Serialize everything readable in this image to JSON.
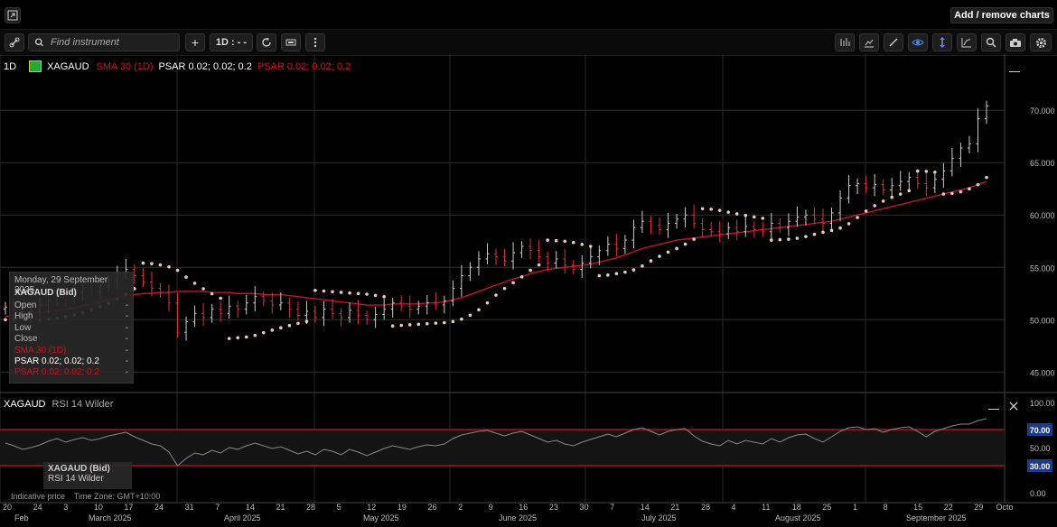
{
  "header": {
    "add_remove_label": "Add / remove charts"
  },
  "toolbar": {
    "search_placeholder": "Find instrument",
    "interval_label": "1D : - -",
    "icons_left": [
      "link-icon",
      "search-icon",
      "plus-icon",
      "interval-selector",
      "refresh-icon",
      "chart-type-icon",
      "more-vertical-icon"
    ],
    "icons_right": [
      "indicators-icon",
      "templates-icon",
      "draw-line-icon",
      "eye-icon",
      "crosshair-icon",
      "line-chart-icon",
      "zoom-icon",
      "camera-icon",
      "settings-icon"
    ]
  },
  "legend": {
    "interval": "1D",
    "symbol": "XAGAUD",
    "sma": "SMA 30 (1D)",
    "psar_white": "PSAR 0.02; 0.02; 0.2",
    "psar_red": "PSAR 0.02; 0.02; 0.2"
  },
  "tooltip": {
    "date": "Monday, 29 September 2025",
    "symbol": "XAGAUD (Bid)",
    "rows": [
      {
        "label": "Open",
        "value": "-"
      },
      {
        "label": "High",
        "value": "-"
      },
      {
        "label": "Low",
        "value": "-"
      },
      {
        "label": "Close",
        "value": "-"
      },
      {
        "label": "SMA 30 (1D)",
        "value": "-"
      },
      {
        "label": "PSAR 0.02; 0.02; 0.2",
        "value": "-"
      },
      {
        "label": "PSAR 0.02; 0.02; 0.2",
        "value": "-"
      }
    ]
  },
  "rsi": {
    "symbol": "XAGAUD",
    "name": "RSI 14 Wilder",
    "tip_symbol": "XAGAUD (Bid)",
    "tip_name": "RSI 14 Wilder",
    "upper_badge": "70.00",
    "lower_badge": "30.00"
  },
  "footnote": "Indicative price    Time Zone: GMT+10:00",
  "colors": {
    "sma": "#c8102e",
    "psar": "#e8c8c8",
    "up": "#cccccc",
    "down": "#e03040",
    "rsi_band": "#d01020"
  },
  "chart_data": {
    "type": "candlestick",
    "symbol": "XAGAUD",
    "interval": "1D",
    "y_ticks": [
      "70.000",
      "65.000",
      "60.000",
      "55.000",
      "50.000",
      "45.000"
    ],
    "ylim": [
      43.3,
      74.5
    ],
    "x_ticks": [
      "20",
      "24",
      "3",
      "10",
      "17",
      "24",
      "31",
      "7",
      "14",
      "21",
      "28",
      "5",
      "12",
      "19",
      "26",
      "2",
      "9",
      "16",
      "23",
      "30",
      "7",
      "14",
      "21",
      "28",
      "4",
      "11",
      "18",
      "25",
      "1",
      "8",
      "15",
      "22",
      "29",
      "Octo"
    ],
    "months": [
      "Feb",
      "March 2025",
      "April 2025",
      "May 2025",
      "June 2025",
      "July 2025",
      "August 2025",
      "September 2025"
    ],
    "close": [
      51.2,
      50.9,
      50.6,
      50.8,
      51.4,
      51.8,
      52.3,
      52.0,
      52.6,
      53.0,
      52.7,
      53.2,
      53.8,
      54.4,
      54.8,
      54.2,
      53.6,
      53.0,
      52.6,
      51.6,
      48.8,
      49.8,
      50.6,
      50.2,
      51.0,
      50.6,
      51.3,
      51.0,
      51.6,
      52.2,
      51.8,
      51.4,
      51.6,
      51.0,
      50.4,
      50.8,
      50.2,
      51.0,
      50.6,
      50.2,
      50.9,
      50.4,
      50.0,
      50.5,
      51.0,
      51.6,
      51.3,
      51.0,
      51.3,
      51.6,
      51.4,
      51.8,
      53.0,
      54.2,
      55.0,
      55.8,
      56.3,
      56.0,
      55.6,
      56.4,
      57.0,
      56.6,
      56.0,
      55.4,
      55.8,
      55.2,
      54.8,
      55.4,
      56.0,
      56.6,
      57.2,
      56.8,
      57.6,
      58.8,
      59.4,
      59.0,
      58.6,
      59.2,
      59.6,
      60.0,
      59.2,
      58.6,
      58.4,
      58.2,
      58.8,
      58.4,
      58.9,
      58.6,
      58.4,
      59.2,
      58.8,
      59.4,
      59.8,
      60.0,
      59.6,
      59.2,
      60.2,
      61.6,
      62.8,
      63.0,
      62.6,
      62.9,
      62.4,
      62.8,
      63.2,
      63.6,
      63.0,
      62.6,
      63.4,
      64.2,
      65.4,
      66.4,
      66.8,
      69.2,
      70.4
    ],
    "sma30": [
      50.3,
      50.4,
      50.5,
      50.6,
      50.7,
      50.8,
      50.9,
      51.0,
      51.1,
      51.3,
      51.5,
      51.7,
      51.9,
      52.1,
      52.3,
      52.4,
      52.5,
      52.5,
      52.6,
      52.6,
      52.7,
      52.7,
      52.7,
      52.7,
      52.6,
      52.6,
      52.6,
      52.5,
      52.5,
      52.5,
      52.4,
      52.4,
      52.4,
      52.3,
      52.2,
      52.1,
      52.0,
      51.9,
      51.8,
      51.7,
      51.6,
      51.5,
      51.4,
      51.4,
      51.4,
      51.5,
      51.5,
      51.5,
      51.5,
      51.6,
      51.6,
      51.7,
      51.9,
      52.1,
      52.4,
      52.7,
      53.0,
      53.3,
      53.6,
      53.9,
      54.1,
      54.4,
      54.6,
      54.8,
      54.9,
      55.0,
      55.1,
      55.2,
      55.3,
      55.5,
      55.7,
      55.9,
      56.2,
      56.5,
      56.8,
      57.0,
      57.2,
      57.4,
      57.6,
      57.7,
      57.8,
      57.9,
      58.0,
      58.1,
      58.2,
      58.3,
      58.4,
      58.5,
      58.6,
      58.7,
      58.8,
      58.9,
      59.0,
      59.1,
      59.2,
      59.3,
      59.4,
      59.6,
      59.8,
      60.0,
      60.2,
      60.4,
      60.6,
      60.8,
      61.0,
      61.2,
      61.4,
      61.6,
      61.8,
      62.0,
      62.2,
      62.4,
      62.6,
      62.9,
      63.2
    ],
    "rsi": [
      55,
      52,
      48,
      50,
      53,
      57,
      60,
      56,
      59,
      61,
      58,
      60,
      63,
      65,
      67,
      62,
      58,
      54,
      52,
      45,
      30,
      38,
      44,
      42,
      47,
      44,
      50,
      48,
      52,
      55,
      52,
      49,
      51,
      47,
      43,
      46,
      42,
      48,
      46,
      42,
      48,
      45,
      41,
      45,
      49,
      52,
      50,
      48,
      51,
      53,
      52,
      54,
      60,
      64,
      66,
      68,
      69,
      66,
      63,
      66,
      68,
      64,
      60,
      56,
      58,
      54,
      52,
      56,
      59,
      62,
      65,
      62,
      66,
      70,
      72,
      68,
      64,
      68,
      70,
      71,
      63,
      57,
      54,
      52,
      58,
      54,
      58,
      56,
      54,
      60,
      56,
      61,
      64,
      65,
      60,
      56,
      62,
      68,
      72,
      73,
      70,
      71,
      67,
      70,
      72,
      73,
      68,
      62,
      68,
      71,
      74,
      76,
      76,
      80,
      82
    ],
    "rsi_levels": [
      70,
      30
    ],
    "rsi_ticks": [
      "100.00",
      "70.00",
      "50.00",
      "30.00",
      "0.00"
    ]
  }
}
